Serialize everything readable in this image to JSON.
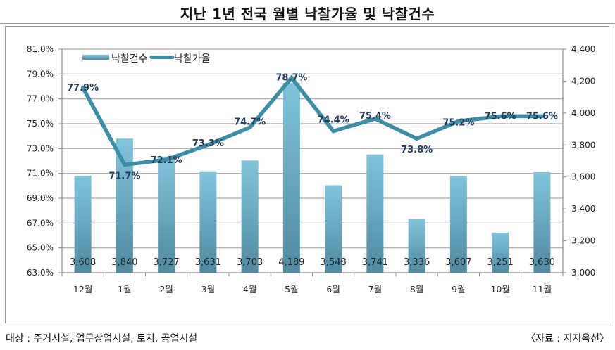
{
  "chart_data": {
    "type": "bar",
    "title": "지난 1년 전국 월별 낙찰가율 및 낙찰건수",
    "categories": [
      "12월",
      "1월",
      "2월",
      "3월",
      "4월",
      "5월",
      "6월",
      "7월",
      "8월",
      "9월",
      "10월",
      "11월"
    ],
    "series": [
      {
        "name": "낙찰건수",
        "type": "bar",
        "axis": "right",
        "values": [
          3608,
          3840,
          3727,
          3631,
          3703,
          4189,
          3548,
          3741,
          3336,
          3607,
          3251,
          3630
        ],
        "labels": [
          "3,608",
          "3,840",
          "3,727",
          "3,631",
          "3,703",
          "4,189",
          "3,548",
          "3,741",
          "3,336",
          "3,607",
          "3,251",
          "3,630"
        ],
        "color_top": "#80c4dd",
        "color_bottom": "#4f8aa2"
      },
      {
        "name": "낙찰가율",
        "type": "line",
        "axis": "left",
        "values": [
          77.9,
          71.7,
          72.1,
          73.3,
          74.7,
          78.7,
          74.4,
          75.4,
          73.8,
          75.2,
          75.6,
          75.6
        ],
        "labels": [
          "77.9%",
          "71.7%",
          "72.1%",
          "73.3%",
          "74.7%",
          "78.7%",
          "74.4%",
          "75.4%",
          "73.8%",
          "75.2%",
          "75.6%",
          "75.6%"
        ],
        "color": "#3a8ea6"
      }
    ],
    "left_axis": {
      "ylim": [
        63.0,
        81.0
      ],
      "ticks": [
        63.0,
        65.0,
        67.0,
        69.0,
        71.0,
        73.0,
        75.0,
        77.0,
        79.0,
        81.0
      ],
      "tick_labels": [
        "63.0%",
        "65.0%",
        "67.0%",
        "69.0%",
        "71.0%",
        "73.0%",
        "75.0%",
        "77.0%",
        "79.0%",
        "81.0%"
      ]
    },
    "right_axis": {
      "ylim": [
        3000,
        4400
      ],
      "ticks": [
        3000,
        3200,
        3400,
        3600,
        3800,
        4000,
        4200,
        4400
      ],
      "tick_labels": [
        "3,000",
        "3,200",
        "3,400",
        "3,600",
        "3,800",
        "4,000",
        "4,200",
        "4,400"
      ]
    },
    "xlabel": "",
    "ylabel": "",
    "grid": true,
    "legend": {
      "position": "top-left",
      "entries": [
        "낙찰건수",
        "낙찰가율"
      ]
    }
  },
  "footer": {
    "left": "대상 : 주거시설, 업무상업시설, 토지, 공업시설",
    "right": "〈자료 : 지지옥션〉"
  }
}
